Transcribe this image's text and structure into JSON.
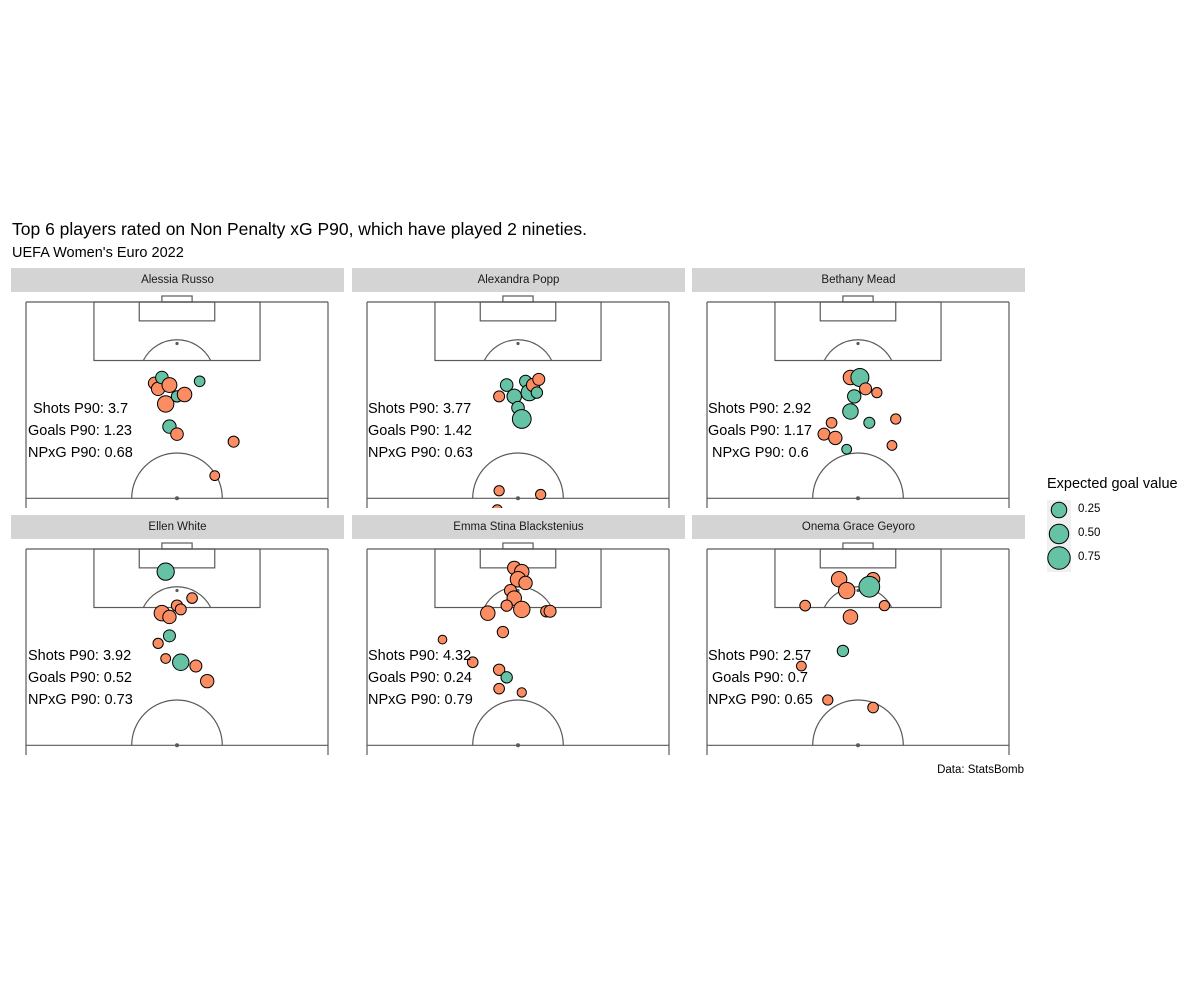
{
  "title": "Top 6 players rated on Non Penalty xG P90, which have played 2 nineties.",
  "subtitle": "UEFA Women's Euro 2022",
  "caption": "Data: StatsBomb",
  "colors": {
    "goal": "#66c2a5",
    "no_goal": "#fc8d62",
    "strip": "#d4d4d4",
    "pitch_line": "#5a5a5a"
  },
  "legend": {
    "title": "Expected goal value",
    "entries": [
      {
        "label": "0.25",
        "value": 0.25
      },
      {
        "label": "0.50",
        "value": 0.5
      },
      {
        "label": "0.75",
        "value": 0.75
      }
    ]
  },
  "chart_data": [
    {
      "type": "scatter",
      "player": "Alessia Russo",
      "stats": {
        "shots": "Shots P90: 3.7",
        "goals": "Goals P90: 1.23",
        "npxg": "NPxG P90: 0.68"
      },
      "shots": [
        {
          "x": 34,
          "y": 21.5,
          "xg": 0.1,
          "goal": false
        },
        {
          "x": 35,
          "y": 23,
          "xg": 0.15,
          "goal": false
        },
        {
          "x": 36,
          "y": 20,
          "xg": 0.12,
          "goal": true
        },
        {
          "x": 38,
          "y": 22,
          "xg": 0.22,
          "goal": false
        },
        {
          "x": 37,
          "y": 27,
          "xg": 0.3,
          "goal": false
        },
        {
          "x": 40,
          "y": 25,
          "xg": 0.08,
          "goal": true
        },
        {
          "x": 42,
          "y": 24.5,
          "xg": 0.2,
          "goal": false
        },
        {
          "x": 46,
          "y": 21,
          "xg": 0.06,
          "goal": true
        },
        {
          "x": 38,
          "y": 33,
          "xg": 0.15,
          "goal": true
        },
        {
          "x": 40,
          "y": 35,
          "xg": 0.12,
          "goal": false
        },
        {
          "x": 55,
          "y": 37,
          "xg": 0.07,
          "goal": false
        },
        {
          "x": 50,
          "y": 46,
          "xg": 0.04,
          "goal": false
        }
      ]
    },
    {
      "type": "scatter",
      "player": "Alexandra Popp",
      "stats": {
        "shots": "Shots P90: 3.77",
        "goals": "Goals P90: 1.42",
        "npxg": "NPxG P90: 0.63"
      },
      "shots": [
        {
          "x": 35,
          "y": 25,
          "xg": 0.07,
          "goal": false
        },
        {
          "x": 37,
          "y": 22,
          "xg": 0.12,
          "goal": true
        },
        {
          "x": 39,
          "y": 25,
          "xg": 0.2,
          "goal": true
        },
        {
          "x": 40,
          "y": 28,
          "xg": 0.12,
          "goal": true
        },
        {
          "x": 41,
          "y": 31,
          "xg": 0.45,
          "goal": true
        },
        {
          "x": 42,
          "y": 21,
          "xg": 0.1,
          "goal": true
        },
        {
          "x": 43,
          "y": 24,
          "xg": 0.3,
          "goal": true
        },
        {
          "x": 44,
          "y": 22,
          "xg": 0.15,
          "goal": false
        },
        {
          "x": 45,
          "y": 24,
          "xg": 0.08,
          "goal": true
        },
        {
          "x": 45.5,
          "y": 20.5,
          "xg": 0.1,
          "goal": false
        },
        {
          "x": 35,
          "y": 50,
          "xg": 0.05,
          "goal": false
        },
        {
          "x": 34.5,
          "y": 55,
          "xg": 0.04,
          "goal": false
        },
        {
          "x": 46,
          "y": 51,
          "xg": 0.05,
          "goal": false
        },
        {
          "x": 51,
          "y": 61,
          "xg": 0.02,
          "goal": false
        }
      ]
    },
    {
      "type": "scatter",
      "player": "Bethany Mead",
      "stats": {
        "shots": "Shots P90: 2.92",
        "goals": "Goals P90: 1.17",
        "npxg": "NPxG P90: 0.6"
      },
      "shots": [
        {
          "x": 38,
          "y": 20,
          "xg": 0.2,
          "goal": false
        },
        {
          "x": 40.5,
          "y": 20,
          "xg": 0.4,
          "goal": true
        },
        {
          "x": 39,
          "y": 25,
          "xg": 0.15,
          "goal": true
        },
        {
          "x": 42,
          "y": 23,
          "xg": 0.1,
          "goal": false
        },
        {
          "x": 38,
          "y": 29,
          "xg": 0.25,
          "goal": true
        },
        {
          "x": 45,
          "y": 24,
          "xg": 0.05,
          "goal": false
        },
        {
          "x": 43,
          "y": 32,
          "xg": 0.07,
          "goal": true
        },
        {
          "x": 33,
          "y": 32,
          "xg": 0.06,
          "goal": false
        },
        {
          "x": 31,
          "y": 35,
          "xg": 0.1,
          "goal": false
        },
        {
          "x": 34,
          "y": 36,
          "xg": 0.15,
          "goal": false
        },
        {
          "x": 37,
          "y": 39,
          "xg": 0.04,
          "goal": true
        },
        {
          "x": 49,
          "y": 38,
          "xg": 0.04,
          "goal": false
        },
        {
          "x": 50,
          "y": 31,
          "xg": 0.05,
          "goal": false
        }
      ]
    },
    {
      "type": "scatter",
      "player": "Ellen White",
      "stats": {
        "shots": "Shots P90: 3.92",
        "goals": "Goals P90: 0.52",
        "npxg": "NPxG P90: 0.73"
      },
      "shots": [
        {
          "x": 37,
          "y": 6,
          "xg": 0.35,
          "goal": true
        },
        {
          "x": 36,
          "y": 17,
          "xg": 0.25,
          "goal": false
        },
        {
          "x": 38,
          "y": 18,
          "xg": 0.15,
          "goal": false
        },
        {
          "x": 40,
          "y": 15,
          "xg": 0.08,
          "goal": false
        },
        {
          "x": 41,
          "y": 16,
          "xg": 0.07,
          "goal": false
        },
        {
          "x": 44,
          "y": 13,
          "xg": 0.06,
          "goal": false
        },
        {
          "x": 35,
          "y": 25,
          "xg": 0.05,
          "goal": false
        },
        {
          "x": 38,
          "y": 23,
          "xg": 0.1,
          "goal": true
        },
        {
          "x": 37,
          "y": 29,
          "xg": 0.04,
          "goal": false
        },
        {
          "x": 41,
          "y": 30,
          "xg": 0.3,
          "goal": true
        },
        {
          "x": 45,
          "y": 31,
          "xg": 0.1,
          "goal": false
        },
        {
          "x": 48,
          "y": 35,
          "xg": 0.15,
          "goal": false
        }
      ]
    },
    {
      "type": "scatter",
      "player": "Emma Stina Blackstenius",
      "stats": {
        "shots": "Shots P90: 4.32",
        "goals": "Goals P90: 0.24",
        "npxg": "NPxG P90: 0.79"
      },
      "shots": [
        {
          "x": 39,
          "y": 5,
          "xg": 0.15,
          "goal": false
        },
        {
          "x": 41,
          "y": 6,
          "xg": 0.2,
          "goal": false
        },
        {
          "x": 40,
          "y": 8,
          "xg": 0.25,
          "goal": false
        },
        {
          "x": 42,
          "y": 9,
          "xg": 0.15,
          "goal": false
        },
        {
          "x": 38,
          "y": 11,
          "xg": 0.1,
          "goal": false
        },
        {
          "x": 39,
          "y": 13,
          "xg": 0.2,
          "goal": false
        },
        {
          "x": 41,
          "y": 16,
          "xg": 0.3,
          "goal": false
        },
        {
          "x": 37,
          "y": 15,
          "xg": 0.08,
          "goal": false
        },
        {
          "x": 32,
          "y": 17,
          "xg": 0.2,
          "goal": false
        },
        {
          "x": 36,
          "y": 22,
          "xg": 0.08,
          "goal": false
        },
        {
          "x": 47.5,
          "y": 16.5,
          "xg": 0.08,
          "goal": false
        },
        {
          "x": 48.5,
          "y": 16.5,
          "xg": 0.1,
          "goal": false
        },
        {
          "x": 20,
          "y": 24,
          "xg": 0.02,
          "goal": false
        },
        {
          "x": 28,
          "y": 30,
          "xg": 0.06,
          "goal": false
        },
        {
          "x": 35,
          "y": 32,
          "xg": 0.08,
          "goal": false
        },
        {
          "x": 37,
          "y": 34,
          "xg": 0.08,
          "goal": true
        },
        {
          "x": 35,
          "y": 37,
          "xg": 0.06,
          "goal": false
        },
        {
          "x": 41,
          "y": 38,
          "xg": 0.03,
          "goal": false
        }
      ]
    },
    {
      "type": "scatter",
      "player": "Onema Grace Geyoro",
      "stats": {
        "shots": "Shots P90: 2.57",
        "goals": "Goals P90: 0.7",
        "npxg": "NPxG P90: 0.65"
      },
      "shots": [
        {
          "x": 35,
          "y": 8,
          "xg": 0.25,
          "goal": false
        },
        {
          "x": 37,
          "y": 11,
          "xg": 0.3,
          "goal": false
        },
        {
          "x": 44,
          "y": 8,
          "xg": 0.15,
          "goal": false
        },
        {
          "x": 43,
          "y": 10,
          "xg": 0.6,
          "goal": true
        },
        {
          "x": 47,
          "y": 15,
          "xg": 0.05,
          "goal": false
        },
        {
          "x": 38,
          "y": 18,
          "xg": 0.2,
          "goal": false
        },
        {
          "x": 26,
          "y": 15,
          "xg": 0.06,
          "goal": false
        },
        {
          "x": 36,
          "y": 27,
          "xg": 0.08,
          "goal": true
        },
        {
          "x": 25,
          "y": 31,
          "xg": 0.04,
          "goal": false
        },
        {
          "x": 32,
          "y": 40,
          "xg": 0.05,
          "goal": false
        },
        {
          "x": 44,
          "y": 42,
          "xg": 0.06,
          "goal": false
        }
      ]
    }
  ]
}
